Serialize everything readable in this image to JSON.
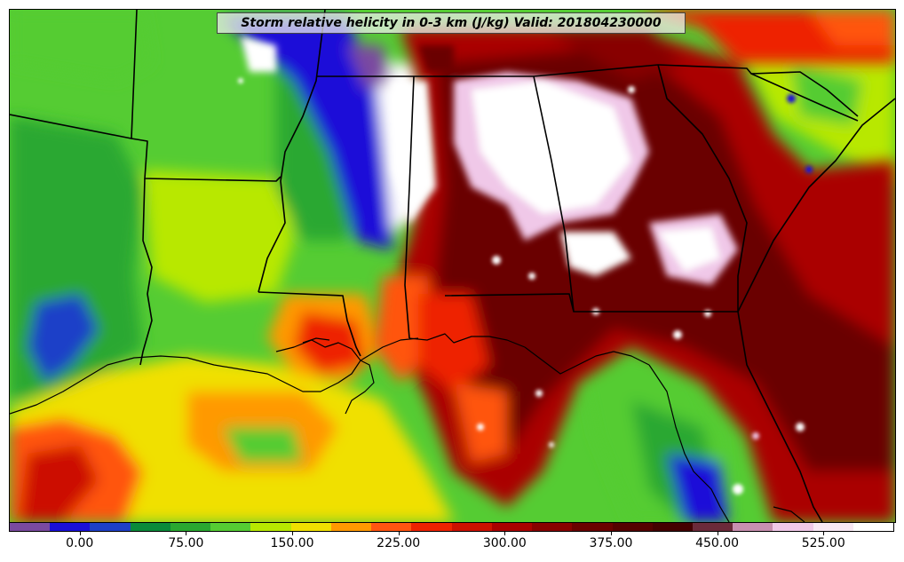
{
  "title": "Storm relative helicity in 0-3 km (J/kg) Valid: 201804230000",
  "colorbar": {
    "colors": [
      "#7a4aa0",
      "#1a10d8",
      "#1e40c8",
      "#0a8a3a",
      "#2aa830",
      "#55cc33",
      "#b8e800",
      "#f0e000",
      "#ff9900",
      "#ff5511",
      "#ee2200",
      "#cc1100",
      "#aa0000",
      "#880000",
      "#6a0000",
      "#550000",
      "#440000",
      "#6b2a3a",
      "#c890b0",
      "#f0c8e8",
      "#f8e8f4",
      "#ffffff"
    ],
    "tick_labels": [
      "0.00",
      "75.00",
      "150.00",
      "225.00",
      "300.00",
      "375.00",
      "450.00",
      "525.00"
    ],
    "tick_values": [
      0,
      75,
      150,
      225,
      300,
      375,
      450,
      525
    ],
    "range": [
      -50,
      575
    ]
  }
}
